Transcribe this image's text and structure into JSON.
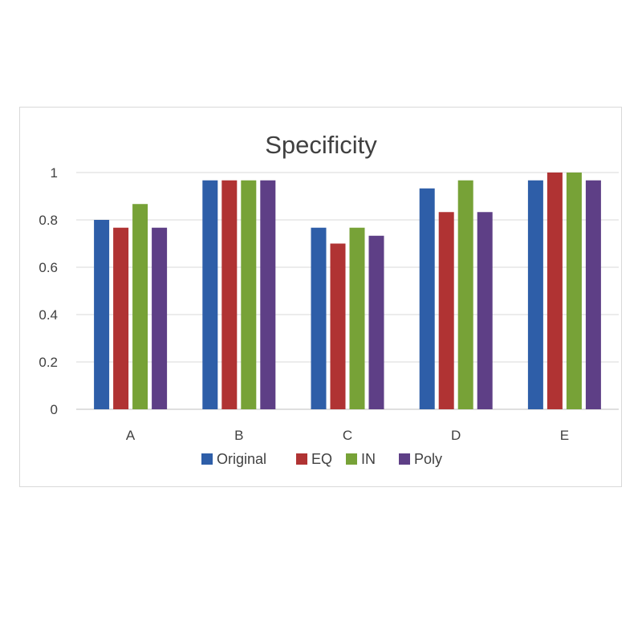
{
  "chart_data": {
    "type": "bar",
    "title": "Specificity",
    "xlabel": "",
    "ylabel": "",
    "categories": [
      "A",
      "B",
      "C",
      "D",
      "E"
    ],
    "ylim": [
      0,
      1
    ],
    "yticks": [
      0,
      0.2,
      0.4,
      0.6,
      0.8,
      1
    ],
    "ytick_labels": [
      "0",
      "0.2",
      "0.4",
      "0.6",
      "0.8",
      "1"
    ],
    "grid": true,
    "legend_position": "bottom",
    "series": [
      {
        "name": "Original",
        "color": "#2e5ea8",
        "values": [
          0.8,
          0.967,
          0.767,
          0.933,
          0.967
        ]
      },
      {
        "name": "EQ",
        "color": "#b03333",
        "values": [
          0.767,
          0.967,
          0.7,
          0.833,
          1.0
        ]
      },
      {
        "name": "IN",
        "color": "#77a237",
        "values": [
          0.867,
          0.967,
          0.767,
          0.967,
          1.0
        ]
      },
      {
        "name": "Poly",
        "color": "#5e3f86",
        "values": [
          0.767,
          0.967,
          0.733,
          0.833,
          0.967
        ]
      }
    ]
  }
}
